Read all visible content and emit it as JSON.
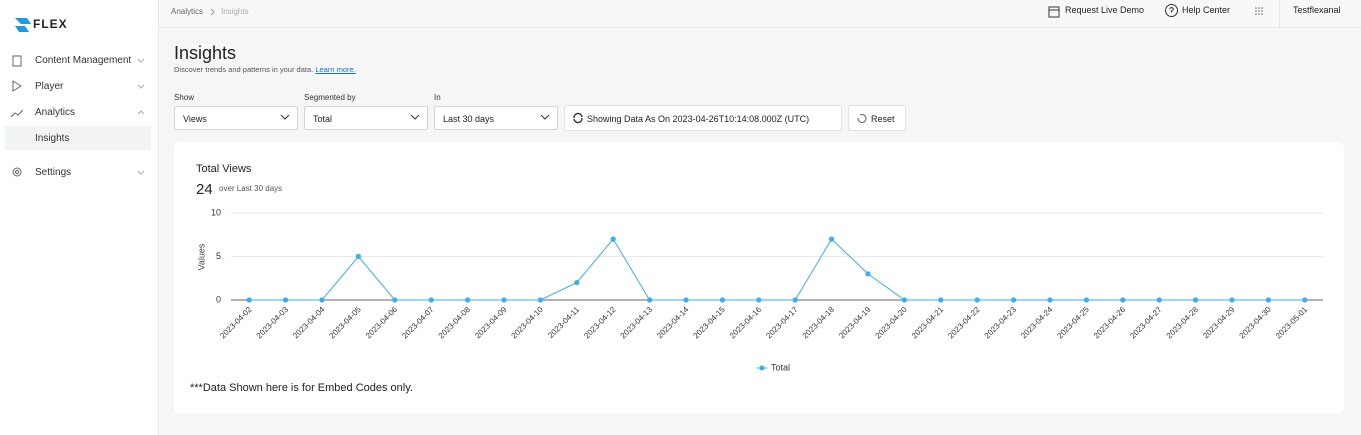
{
  "sidebar": {
    "logo": "FLEX",
    "menu": [
      "Content Management",
      "Player",
      "Analytics",
      "Insights",
      "Settings"
    ]
  },
  "topbar": {
    "breadcrumb": [
      "Analytics",
      "Insights"
    ],
    "actions": [
      "Request Live Demo",
      "Help Center"
    ],
    "user": "Testflexanal"
  },
  "page": {
    "title": "Insights",
    "subtitle": "Discover trends and patterns in your data.",
    "link": "Learn more."
  },
  "filters": [
    {
      "label": "Show",
      "value": "Views"
    },
    {
      "label": "Segmented by",
      "value": "Total"
    },
    {
      "label": "In",
      "value": "Last 30 days"
    }
  ],
  "buttons": [
    "Showing Data As On 2023-04-26T10:14:08.000Z (UTC)",
    "Reset"
  ],
  "card": {
    "title": "Total Views",
    "total": 24,
    "period": "over Last 30 days",
    "note": "***Data Shown here is for Embed Codes only."
  },
  "chart_data": {
    "type": "line",
    "y_label": "Values",
    "categories": [
      "2023-04-02",
      "2023-04-03",
      "2023-04-04",
      "2023-04-05",
      "2023-04-06",
      "2023-04-07",
      "2023-04-08",
      "2023-04-09",
      "2023-04-10",
      "2023-04-11",
      "2023-04-12",
      "2023-04-13",
      "2023-04-14",
      "2023-04-15",
      "2023-04-16",
      "2023-04-17",
      "2023-04-18",
      "2023-04-19",
      "2023-04-20",
      "2023-04-21",
      "2023-04-22",
      "2023-04-23",
      "2023-04-24",
      "2023-04-25",
      "2023-04-26",
      "2023-04-27",
      "2023-04-28",
      "2023-04-29",
      "2023-04-30",
      "2023-05-01"
    ],
    "series": [
      {
        "name": "Total",
        "color": "#3aaef0",
        "values": [
          0,
          0,
          0,
          5,
          0,
          0,
          0,
          0,
          0,
          2,
          7,
          0,
          0,
          0,
          0,
          0,
          7,
          3,
          0,
          0,
          0,
          0,
          0,
          0,
          0,
          0,
          0,
          0,
          0,
          0
        ]
      }
    ],
    "ylim": [
      0,
      10
    ],
    "yticks": [
      0,
      5,
      10
    ],
    "grid": true,
    "legend": "bottom"
  }
}
